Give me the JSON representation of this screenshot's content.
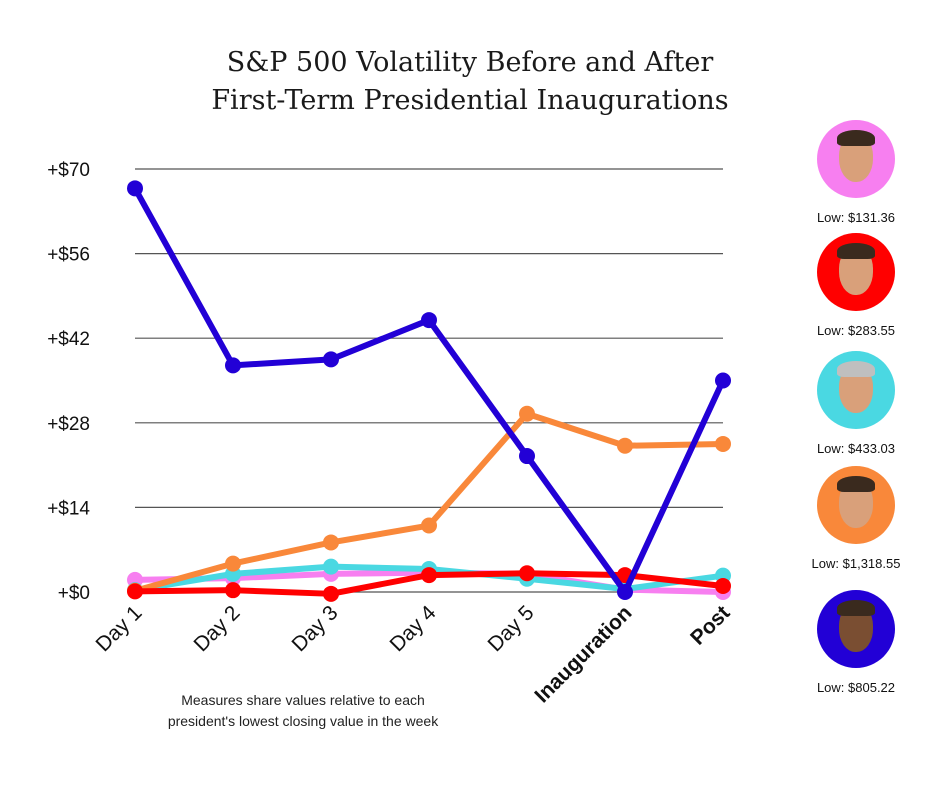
{
  "chart_data": {
    "type": "line",
    "title_lines": [
      "S&P 500 Volatility Before and After",
      "First-Term Presidential Inaugurations"
    ],
    "categories": [
      "Day 1",
      "Day 2",
      "Day 3",
      "Day 4",
      "Day 5",
      "Inauguration",
      "Post"
    ],
    "y_ticks": [
      "+$70",
      "+$56",
      "+$42",
      "+$28",
      "+$14",
      "+$0"
    ],
    "ylim": [
      0,
      70
    ],
    "grid": true,
    "note": [
      "Measures share values relative to each",
      "president's lowest closing value in the week"
    ],
    "series": [
      {
        "color": "#f77ff0",
        "values": [
          2.0,
          2.3,
          3.0,
          3.2,
          3.0,
          0.4,
          0.0
        ]
      },
      {
        "color": "#4ad8e2",
        "values": [
          0.3,
          3.0,
          4.2,
          3.8,
          2.2,
          0.5,
          2.7
        ]
      },
      {
        "color": "#f9883a",
        "values": [
          0.2,
          4.7,
          8.2,
          11.0,
          29.5,
          24.2,
          24.5
        ]
      },
      {
        "color": "#ff0000",
        "values": [
          0.1,
          0.3,
          -0.3,
          2.8,
          3.1,
          2.8,
          1.0
        ]
      },
      {
        "color": "#2200d6",
        "values": [
          66.8,
          37.5,
          38.5,
          45.0,
          22.5,
          0.0,
          35.0
        ]
      }
    ]
  },
  "presidents": [
    {
      "low": "Low: $131.36",
      "color": "#f77ff0",
      "icon": "reagan-portrait"
    },
    {
      "low": "Low: $283.55",
      "color": "#ff0000",
      "icon": "bush-portrait"
    },
    {
      "low": "Low: $433.03",
      "color": "#4ad8e2",
      "icon": "clinton-portrait"
    },
    {
      "low": "Low: $1,318.55",
      "color": "#f9883a",
      "icon": "bush-jr-portrait"
    },
    {
      "low": "Low: $805.22",
      "color": "#2200d6",
      "icon": "obama-portrait"
    }
  ]
}
